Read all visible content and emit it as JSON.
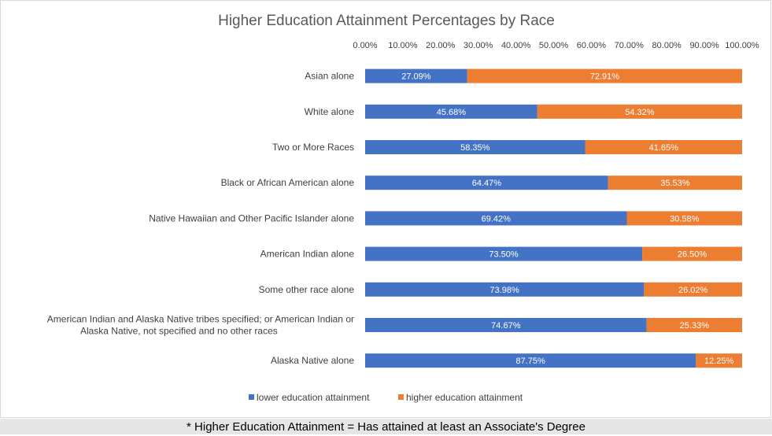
{
  "chart_data": {
    "type": "bar",
    "orientation": "horizontal",
    "stacked": true,
    "title": "Higher Education Attainment Percentages by Race",
    "categories": [
      "Asian alone",
      "White alone",
      "Two or More Races",
      "Black or African American alone",
      "Native Hawaiian and Other Pacific Islander alone",
      "American Indian alone",
      "Some other race alone",
      "American Indian and Alaska Native tribes specified; or American Indian or Alaska Native, not specified and no other races",
      "Alaska Native alone"
    ],
    "series": [
      {
        "name": "lower education attainment",
        "color": "#4472c4",
        "values": [
          27.09,
          45.68,
          58.35,
          64.47,
          69.42,
          73.5,
          73.98,
          74.67,
          87.75
        ],
        "labels": [
          "27.09%",
          "45.68%",
          "58.35%",
          "64.47%",
          "69.42%",
          "73.50%",
          "73.98%",
          "74.67%",
          "87.75%"
        ]
      },
      {
        "name": "higher education attainment",
        "color": "#ed7d31",
        "values": [
          72.91,
          54.32,
          41.65,
          35.53,
          30.58,
          26.5,
          26.02,
          25.33,
          12.25
        ],
        "labels": [
          "72.91%",
          "54.32%",
          "41.65%",
          "35.53%",
          "30.58%",
          "26.50%",
          "26.02%",
          "25.33%",
          "12.25%"
        ]
      }
    ],
    "xaxis": {
      "position": "top",
      "range": [
        0,
        100
      ],
      "ticks": [
        "0.00%",
        "10.00%",
        "20.00%",
        "30.00%",
        "40.00%",
        "50.00%",
        "60.00%",
        "70.00%",
        "80.00%",
        "90.00%",
        "100.00%"
      ]
    },
    "legend": {
      "placement": "bottom"
    },
    "grid": false
  },
  "footnote": "* Higher Education Attainment = Has attained at least an Associate's Degree"
}
